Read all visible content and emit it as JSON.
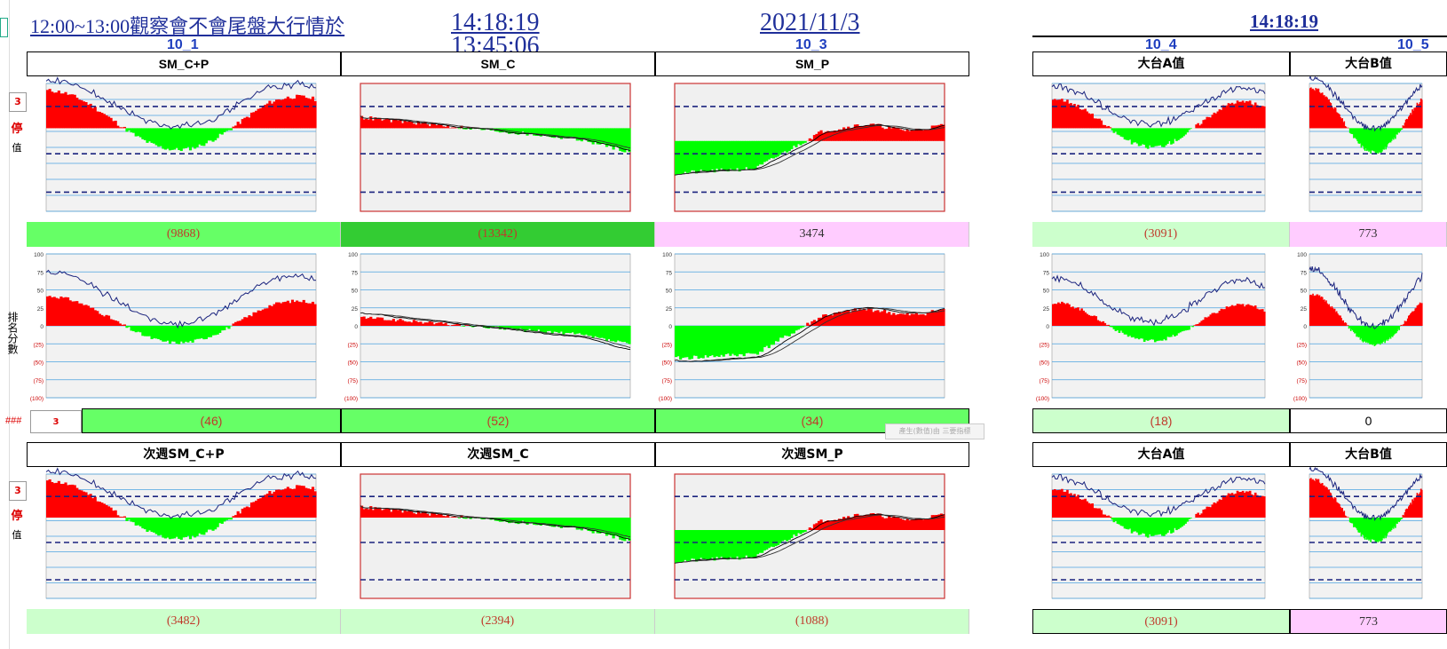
{
  "header": {
    "title_link": "12:00~13:00觀察會不會尾盤大行情於",
    "time_primary": "14:18:19",
    "time_secondary": "13:45:06",
    "date": "2021/11/3",
    "time_right": "14:18:19"
  },
  "columns": {
    "codes": [
      "10_1",
      "10_3",
      "10_4",
      "10_5"
    ]
  },
  "side": {
    "button_top": "3",
    "stop_label": "停",
    "value_label": "值",
    "rank_label": "排名分數",
    "hash": "###",
    "score_button": "3"
  },
  "top_panels": [
    {
      "title": "SM_C+P",
      "value": "(9868)",
      "score": "(46)"
    },
    {
      "title": "SM_C",
      "value": "(13342)",
      "score": "(52)"
    },
    {
      "title": "SM_P",
      "value": "3474",
      "score": "(34)"
    },
    {
      "title": "大台A值",
      "value": "(3091)",
      "score": "(18)"
    },
    {
      "title": "大台B值",
      "value": "773",
      "score": "0"
    }
  ],
  "bottom_panels": [
    {
      "title": "次週SM_C+P",
      "value": "(3482)"
    },
    {
      "title": "次週SM_C",
      "value": "(2394)"
    },
    {
      "title": "次週SM_P",
      "value": "(1088)"
    },
    {
      "title": "大台A值",
      "value": "(3091)"
    },
    {
      "title": "大台B值",
      "value": "773"
    }
  ],
  "rank_axis_ticks": [
    "100",
    "75",
    "50",
    "25",
    "0",
    "(25)",
    "(50)",
    "(75)",
    "(100)"
  ],
  "tooltip": "產生(數值)由 三要指標",
  "colors": {
    "positive_fill": "#ff0000",
    "negative_fill": "#00ff00",
    "line": "#1a237e",
    "dashed": "#1a237e",
    "value_green": "#66ff66",
    "value_pink": "#ffccff"
  }
}
